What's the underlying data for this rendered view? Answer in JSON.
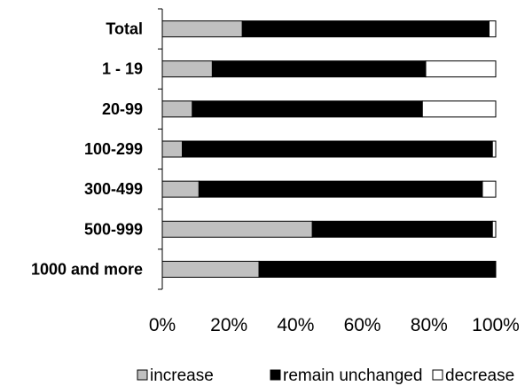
{
  "chart_data": {
    "type": "bar",
    "orientation": "horizontal",
    "stacked": "percent",
    "categories": [
      "Total",
      "1 - 19",
      "20-99",
      "100-299",
      "300-499",
      "500-999",
      "1000 and more"
    ],
    "series": [
      {
        "name": "increase",
        "values": [
          24,
          15,
          9,
          6,
          11,
          45,
          29
        ]
      },
      {
        "name": "remain unchanged",
        "values": [
          74,
          64,
          69,
          93,
          85,
          54,
          71
        ]
      },
      {
        "name": "decrease",
        "values": [
          2,
          21,
          22,
          1,
          4,
          1,
          0
        ]
      }
    ],
    "xlim": [
      0,
      100
    ],
    "xticks": [
      "0%",
      "20%",
      "40%",
      "60%",
      "80%",
      "100%"
    ],
    "grid": false,
    "legend": "bottom",
    "colors": {
      "increase": "#c0c0c0",
      "remain unchanged": "#000000",
      "decrease": "#ffffff",
      "border": "#000000"
    }
  }
}
